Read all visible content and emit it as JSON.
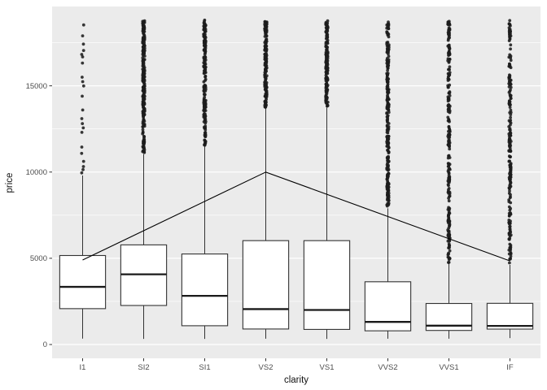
{
  "figure": {
    "background": "#FFFFFF",
    "panel_background": "#EBEBEB",
    "grid_major_color": "#FFFFFF",
    "grid_minor_color": "#FFFFFF",
    "box_fill": "#FFFFFF",
    "box_stroke": "#333333",
    "median_stroke": "#1A1A1A",
    "whisker_stroke": "#333333",
    "outlier_color": "#1C1C1C",
    "overlay_line_color": "#000000",
    "tick_mark_color": "#333333",
    "tick_label_color": "#4D4D4D",
    "axis_title_color": "#111111"
  },
  "chart_data": {
    "type": "boxplot",
    "title": "",
    "xlabel": "clarity",
    "ylabel": "price",
    "ylim": [
      -800,
      19600
    ],
    "yticks": [
      0,
      5000,
      10000,
      15000
    ],
    "ytick_labels": [
      "0",
      "5000",
      "10000",
      "15000"
    ],
    "y_minor_ticks": [
      2500,
      7500,
      12500,
      17500
    ],
    "grid": true,
    "legend": "none",
    "categories": [
      "I1",
      "SI2",
      "SI1",
      "VS2",
      "VS1",
      "VVS2",
      "VVS1",
      "IF"
    ],
    "boxes": [
      {
        "category": "I1",
        "whisker_low": 345,
        "q1": 2080,
        "median": 3344,
        "q3": 5160,
        "whisker_high": 9800,
        "outliers": {
          "mode": "list",
          "values": [
            9950,
            10140,
            10320,
            10620,
            11080,
            11450,
            12300,
            12560,
            12810,
            13100,
            13600,
            14400,
            14990,
            15240,
            15500,
            16320,
            16680,
            16820,
            17050,
            17420,
            17900,
            18530
          ]
        }
      },
      {
        "category": "SI2",
        "whisker_low": 326,
        "q1": 2264,
        "median": 4072,
        "q3": 5777,
        "whisker_high": 11040,
        "outliers": {
          "mode": "band",
          "min": 11100,
          "max": 18804,
          "count": 260
        }
      },
      {
        "category": "SI1",
        "whisker_low": 326,
        "q1": 1089,
        "median": 2822,
        "q3": 5250,
        "whisker_high": 11490,
        "outliers": {
          "mode": "band",
          "min": 11550,
          "max": 18818,
          "count": 200
        }
      },
      {
        "category": "VS2",
        "whisker_low": 334,
        "q1": 900,
        "median": 2054,
        "q3": 6024,
        "whisker_high": 13710,
        "outliers": {
          "mode": "band",
          "min": 13760,
          "max": 18823,
          "count": 170
        }
      },
      {
        "category": "VS1",
        "whisker_low": 327,
        "q1": 876,
        "median": 2005,
        "q3": 6023,
        "whisker_high": 13740,
        "outliers": {
          "mode": "band",
          "min": 13790,
          "max": 18795,
          "count": 160
        }
      },
      {
        "category": "VVS2",
        "whisker_low": 336,
        "q1": 794,
        "median": 1311,
        "q3": 3638,
        "whisker_high": 7900,
        "outliers": {
          "mode": "band",
          "min": 7960,
          "max": 18768,
          "count": 260
        }
      },
      {
        "category": "VVS1",
        "whisker_low": 336,
        "q1": 816,
        "median": 1093,
        "q3": 2379,
        "whisker_high": 4720,
        "outliers": {
          "mode": "band",
          "min": 4760,
          "max": 18777,
          "count": 240
        }
      },
      {
        "category": "IF",
        "whisker_low": 369,
        "q1": 895,
        "median": 1080,
        "q3": 2388,
        "whisker_high": 4620,
        "outliers": {
          "mode": "band",
          "min": 4670,
          "max": 18806,
          "count": 220
        }
      }
    ],
    "line_overlay": {
      "description": "single black line peaking at VS2",
      "points": [
        {
          "category": "I1",
          "y": 4900
        },
        {
          "category": "VS2",
          "y": 10000
        },
        {
          "category": "IF",
          "y": 4850
        }
      ]
    }
  }
}
